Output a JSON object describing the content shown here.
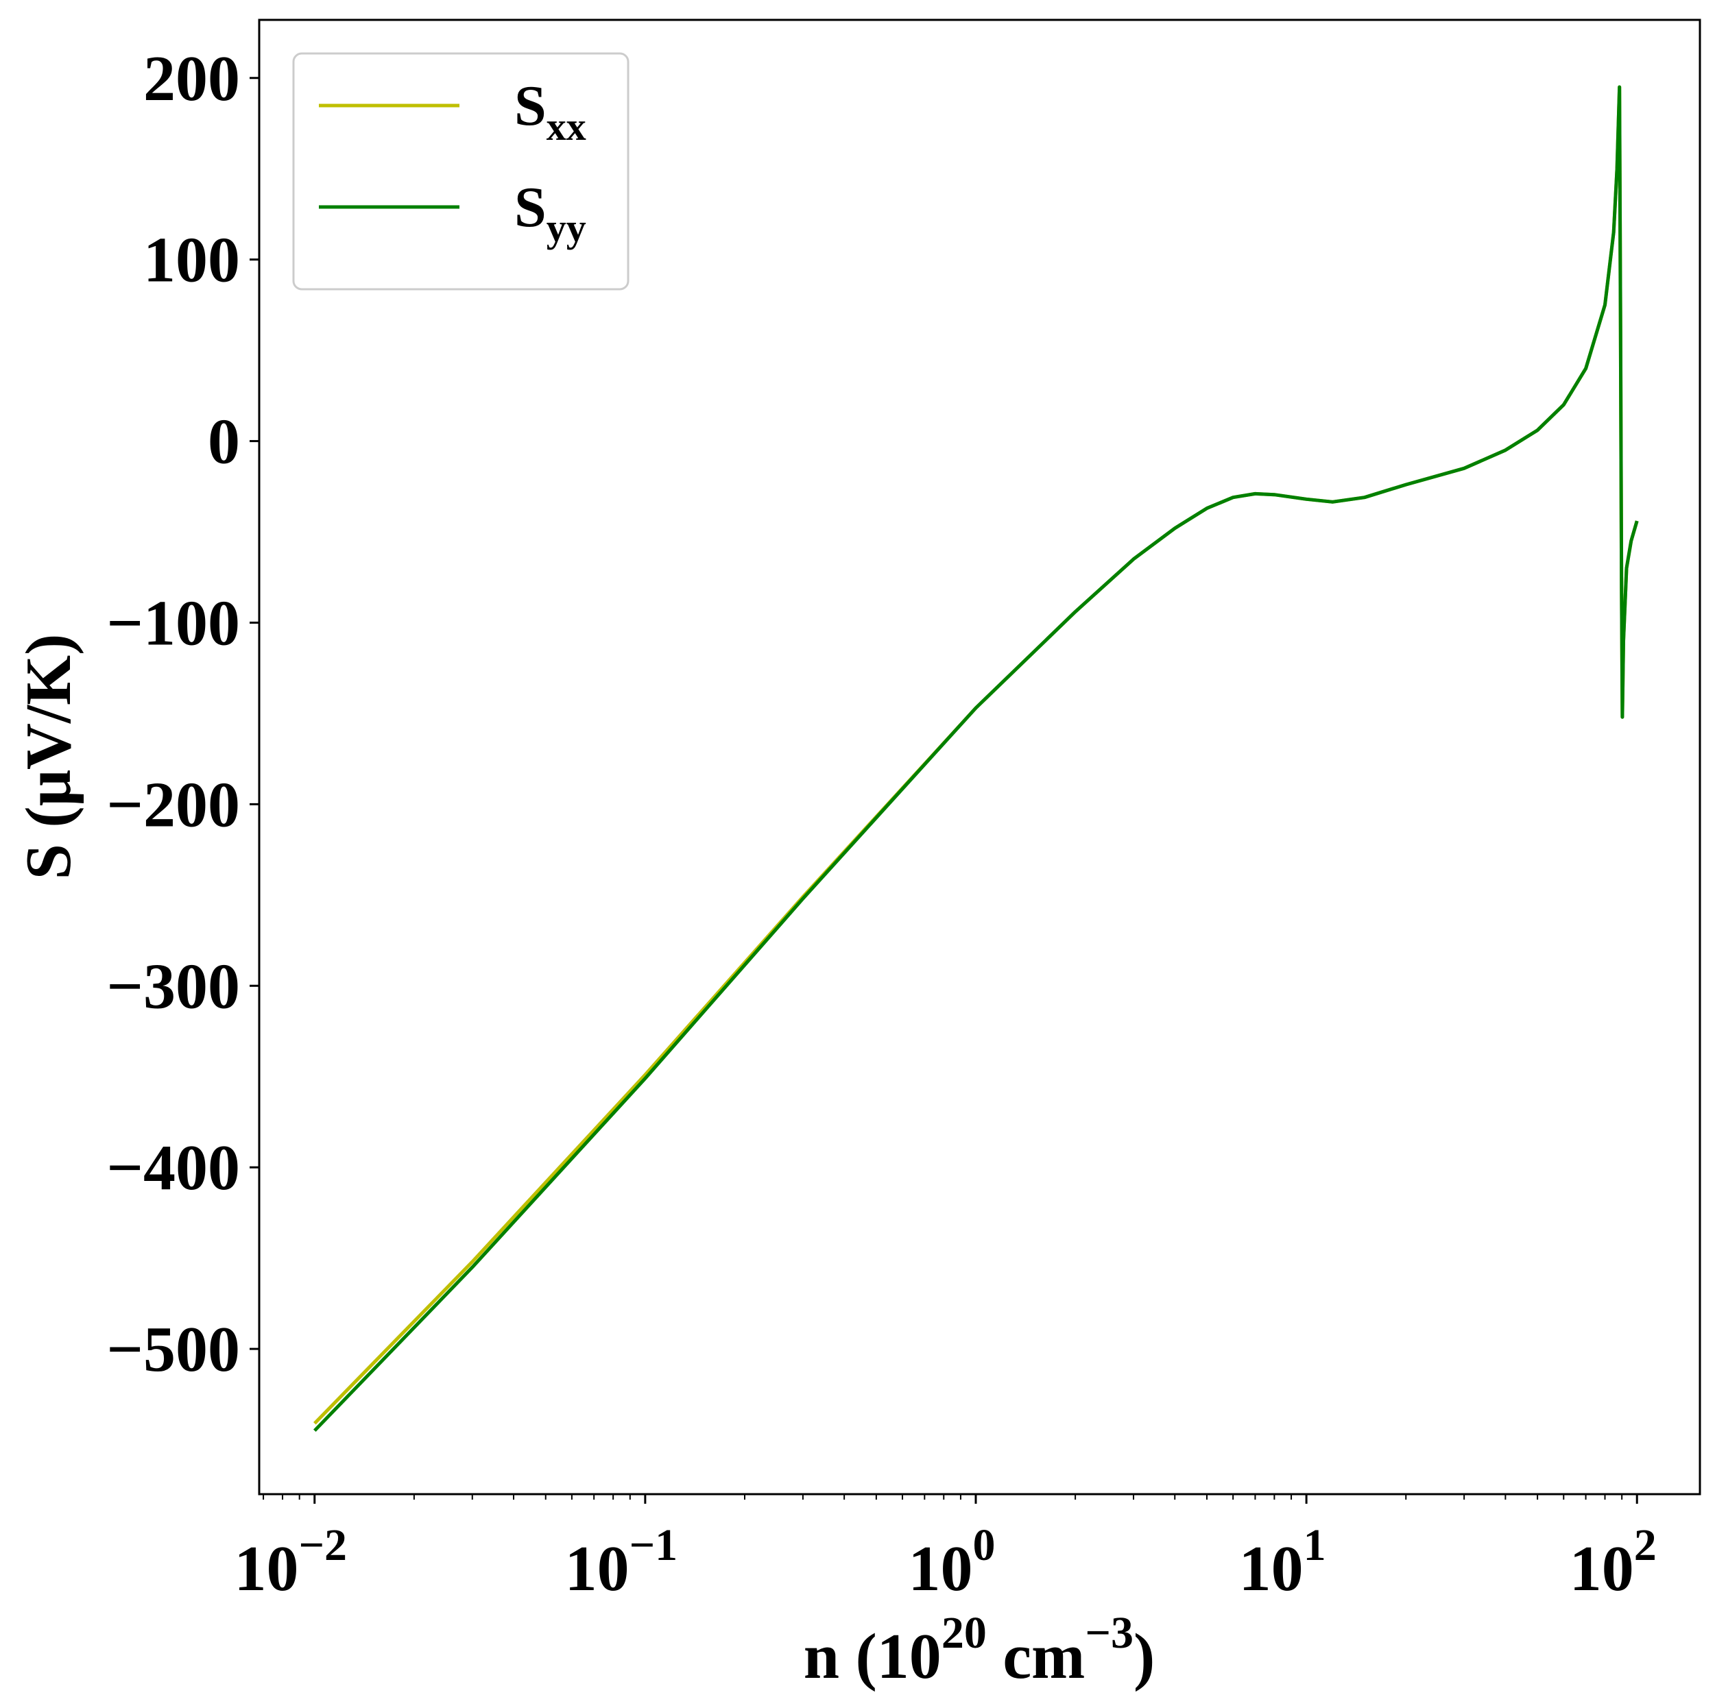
{
  "chart_data": {
    "type": "line",
    "title": "",
    "xlabel": {
      "main": "n (10",
      "exp": "20",
      "unit": " cm",
      "unit_exp": "−3",
      "close": ")"
    },
    "ylabel": "S (μV/K)",
    "x_scale": "log",
    "xlim": [
      0.0068,
      155
    ],
    "ylim": [
      -580,
      232
    ],
    "x_ticks": [
      {
        "value": 0.01,
        "base": "10",
        "exp": "−2"
      },
      {
        "value": 0.1,
        "base": "10",
        "exp": "−1"
      },
      {
        "value": 1,
        "base": "10",
        "exp": "0"
      },
      {
        "value": 10,
        "base": "10",
        "exp": "1"
      },
      {
        "value": 100,
        "base": "10",
        "exp": "2"
      }
    ],
    "y_ticks": [
      {
        "value": 200,
        "label": "200"
      },
      {
        "value": 100,
        "label": "100"
      },
      {
        "value": 0,
        "label": "0"
      },
      {
        "value": -100,
        "label": "−100"
      },
      {
        "value": -200,
        "label": "−200"
      },
      {
        "value": -300,
        "label": "−300"
      },
      {
        "value": -400,
        "label": "−400"
      },
      {
        "value": -500,
        "label": "−500"
      }
    ],
    "grid": false,
    "legend_position": "upper-left",
    "series": [
      {
        "name": "S",
        "name_sub": "xx",
        "color": "#bfbf00",
        "points": [
          [
            0.01,
            -541
          ],
          [
            0.03,
            -452
          ],
          [
            0.1,
            -349
          ],
          [
            0.3,
            -251
          ],
          [
            1,
            -147
          ],
          [
            2,
            -94
          ],
          [
            3,
            -65
          ],
          [
            4,
            -48
          ],
          [
            5,
            -37
          ],
          [
            6,
            -31
          ],
          [
            7,
            -29
          ],
          [
            8,
            -29.5
          ],
          [
            10,
            -32
          ],
          [
            12,
            -33.5
          ],
          [
            15,
            -31
          ],
          [
            20,
            -24
          ],
          [
            30,
            -15
          ],
          [
            40,
            -5
          ],
          [
            50,
            6
          ],
          [
            60,
            20
          ],
          [
            70,
            40
          ],
          [
            80,
            75
          ],
          [
            85,
            115
          ],
          [
            87,
            150
          ],
          [
            88.5,
            195
          ],
          [
            89.2,
            60
          ],
          [
            89.8,
            -80
          ],
          [
            90.3,
            -152
          ],
          [
            91,
            -110
          ],
          [
            93,
            -70
          ],
          [
            96,
            -55
          ],
          [
            100,
            -44
          ]
        ]
      },
      {
        "name": "S",
        "name_sub": "yy",
        "color": "#008000",
        "points": [
          [
            0.01,
            -545
          ],
          [
            0.03,
            -455
          ],
          [
            0.1,
            -351
          ],
          [
            0.3,
            -252
          ],
          [
            1,
            -147
          ],
          [
            2,
            -94
          ],
          [
            3,
            -65
          ],
          [
            4,
            -48
          ],
          [
            5,
            -37
          ],
          [
            6,
            -31
          ],
          [
            7,
            -29
          ],
          [
            8,
            -29.5
          ],
          [
            10,
            -32
          ],
          [
            12,
            -33.5
          ],
          [
            15,
            -31
          ],
          [
            20,
            -24
          ],
          [
            30,
            -15
          ],
          [
            40,
            -5
          ],
          [
            50,
            6
          ],
          [
            60,
            20
          ],
          [
            70,
            40
          ],
          [
            80,
            75
          ],
          [
            85,
            115
          ],
          [
            87,
            150
          ],
          [
            88.5,
            195
          ],
          [
            89.2,
            60
          ],
          [
            89.8,
            -80
          ],
          [
            90.3,
            -152
          ],
          [
            91,
            -110
          ],
          [
            93,
            -70
          ],
          [
            96,
            -55
          ],
          [
            100,
            -44
          ]
        ]
      }
    ]
  }
}
